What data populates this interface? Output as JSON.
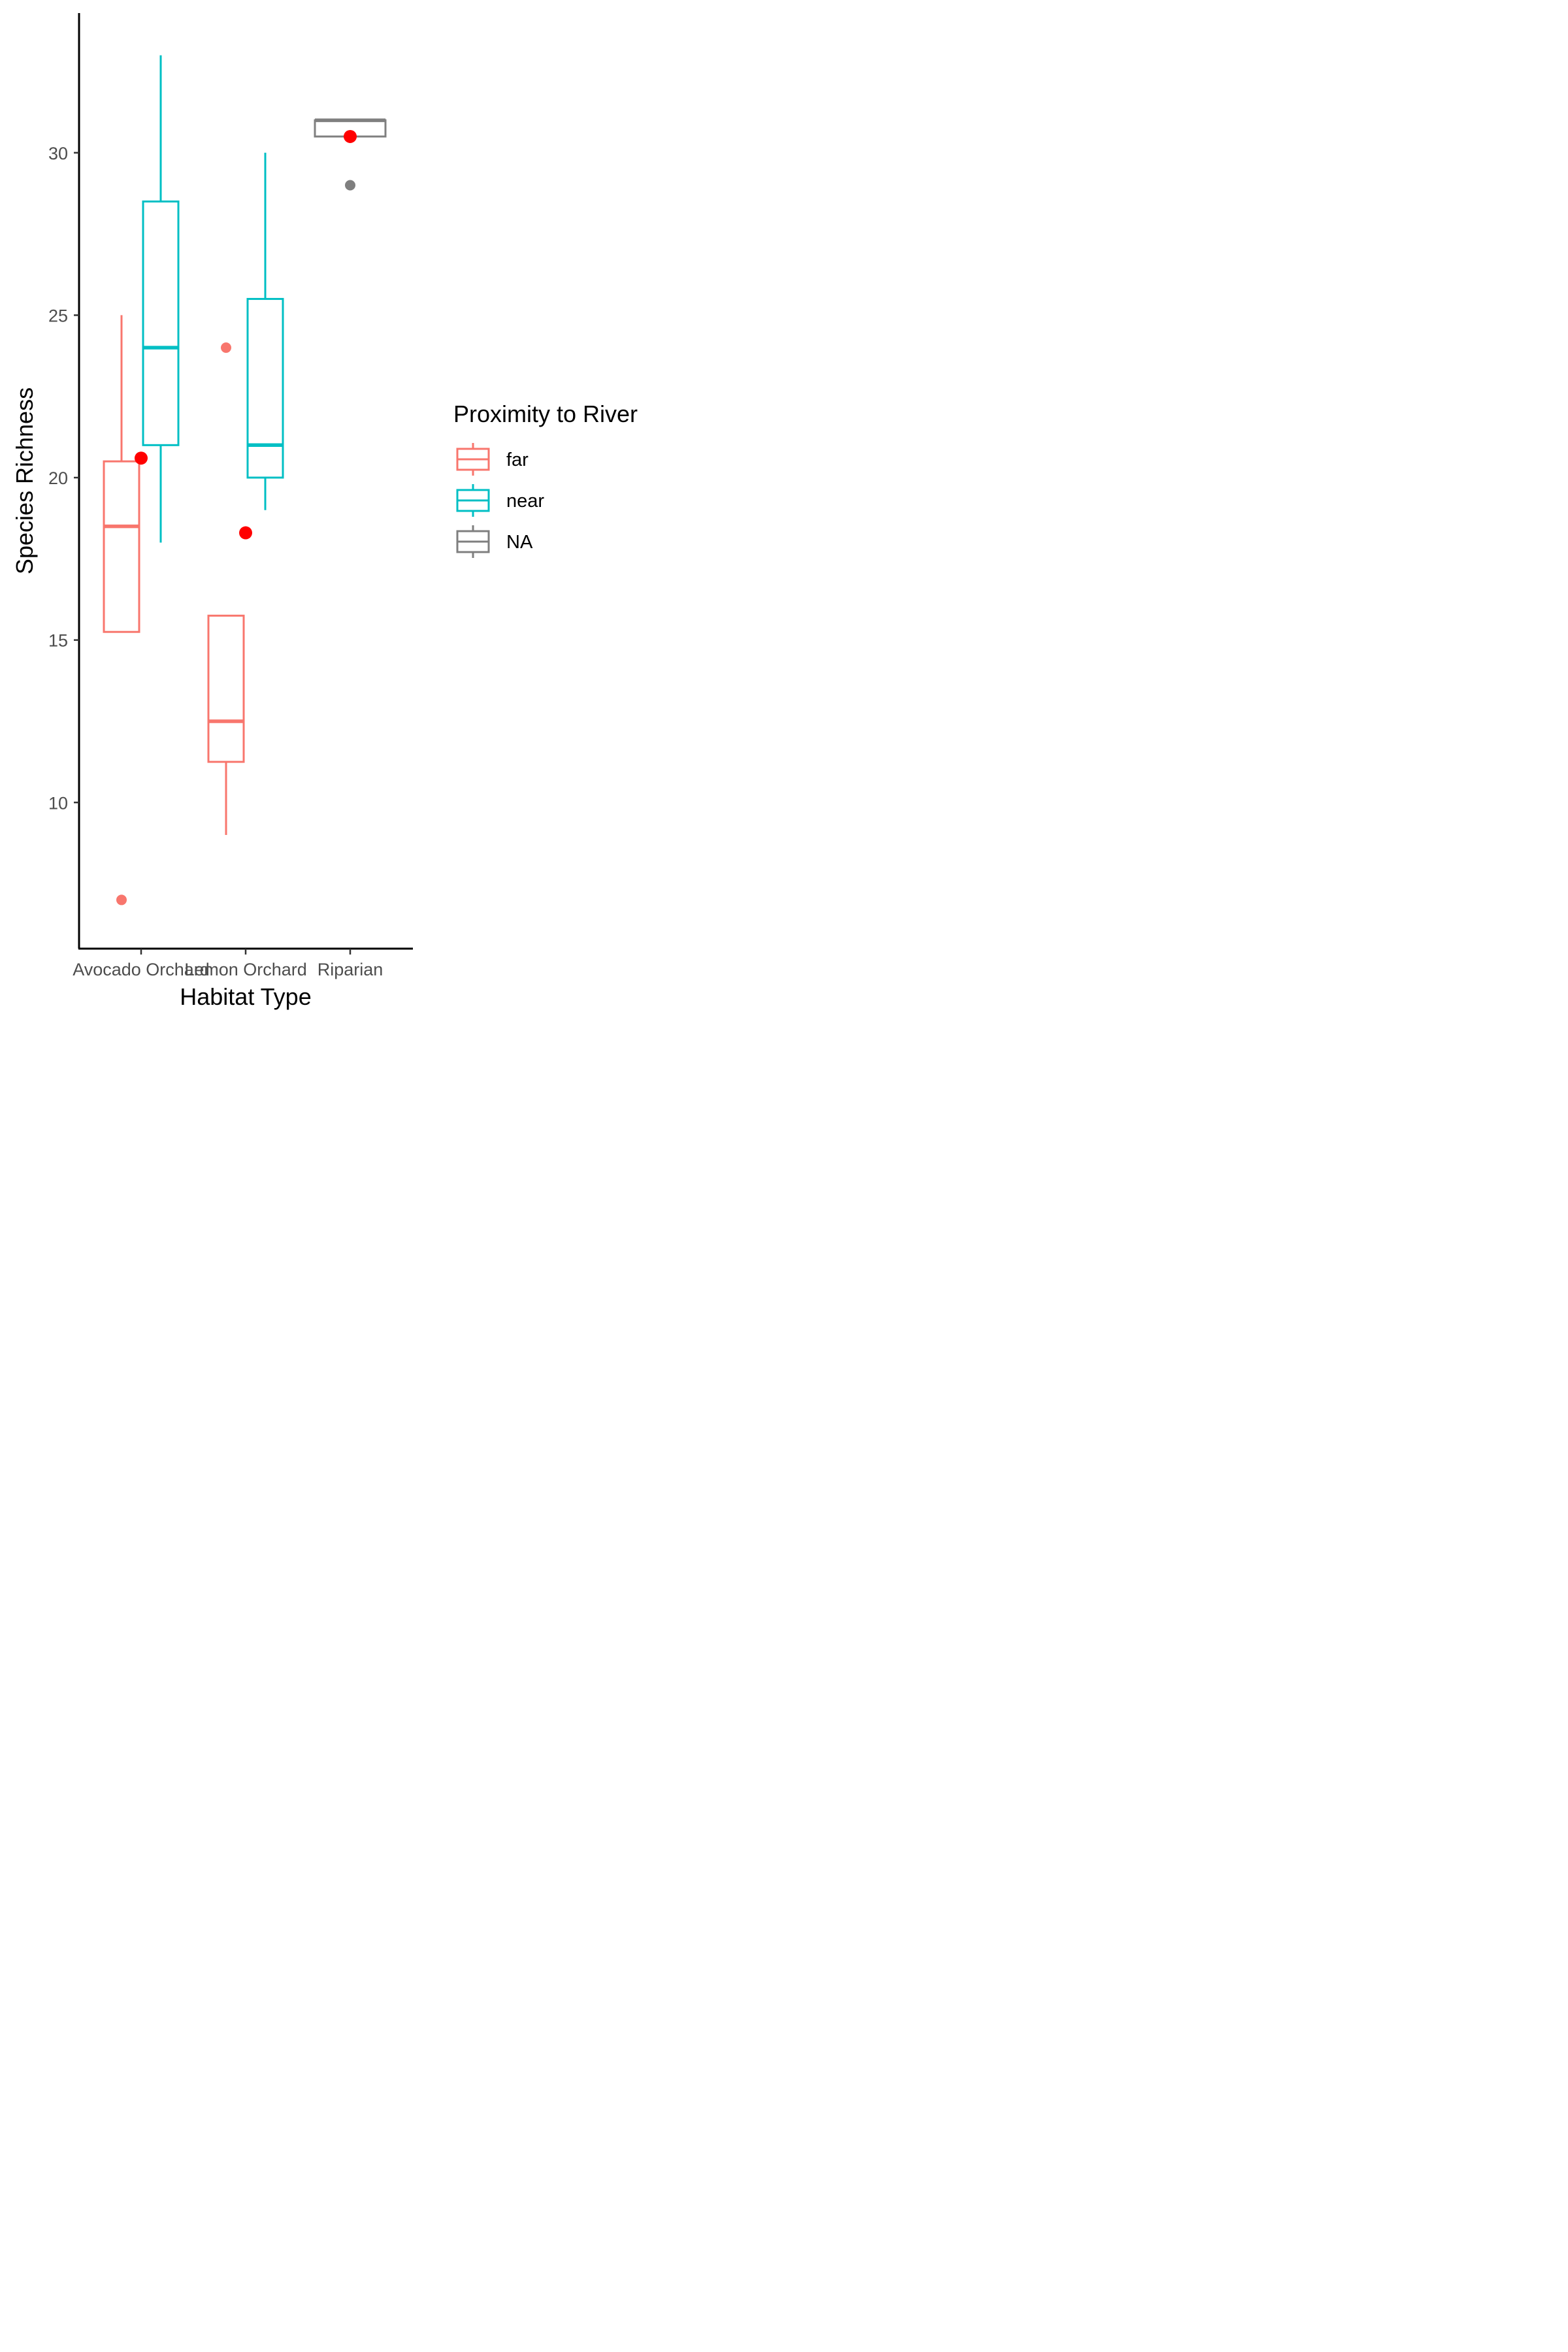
{
  "chart_data": {
    "type": "box",
    "xlabel": "Habitat Type",
    "ylabel": "Species Richness",
    "categories": [
      "Avocado Orchard",
      "Lemon Orchard",
      "Riparian"
    ],
    "y_ticks": [
      10,
      15,
      20,
      25,
      30
    ],
    "ylim": [
      5.5,
      34.3
    ],
    "grid": false,
    "legend": {
      "title": "Proximity to River",
      "position": "right",
      "entries": [
        {
          "label": "far",
          "color": "#F8766D"
        },
        {
          "label": "near",
          "color": "#00BFC4"
        },
        {
          "label": "NA",
          "color": "#7F7F7F"
        }
      ]
    },
    "series": [
      {
        "name": "far",
        "color": "#F8766D",
        "boxes": [
          {
            "category": "Avocado Orchard",
            "whisker_low": 15.25,
            "q1": 15.25,
            "median": 18.5,
            "q3": 20.5,
            "whisker_high": 25,
            "outliers": [
              7
            ]
          },
          {
            "category": "Lemon Orchard",
            "whisker_low": 9,
            "q1": 11.25,
            "median": 12.5,
            "q3": 15.75,
            "whisker_high": 15.75,
            "outliers": [
              24
            ]
          }
        ]
      },
      {
        "name": "near",
        "color": "#00BFC4",
        "boxes": [
          {
            "category": "Avocado Orchard",
            "whisker_low": 18,
            "q1": 21,
            "median": 24,
            "q3": 28.5,
            "whisker_high": 33,
            "outliers": []
          },
          {
            "category": "Lemon Orchard",
            "whisker_low": 19,
            "q1": 20,
            "median": 21,
            "q3": 25.5,
            "whisker_high": 30,
            "outliers": []
          }
        ]
      },
      {
        "name": "NA",
        "color": "#7F7F7F",
        "boxes": [
          {
            "category": "Riparian",
            "whisker_low": 30.5,
            "q1": 30.5,
            "median": 31,
            "q3": 31,
            "whisker_high": 31,
            "outliers": [
              29
            ]
          }
        ]
      }
    ],
    "means": {
      "color": "#FF0000",
      "points": [
        {
          "category": "Avocado Orchard",
          "y": 20.6
        },
        {
          "category": "Lemon Orchard",
          "y": 18.3
        },
        {
          "category": "Riparian",
          "y": 30.5
        }
      ]
    }
  }
}
